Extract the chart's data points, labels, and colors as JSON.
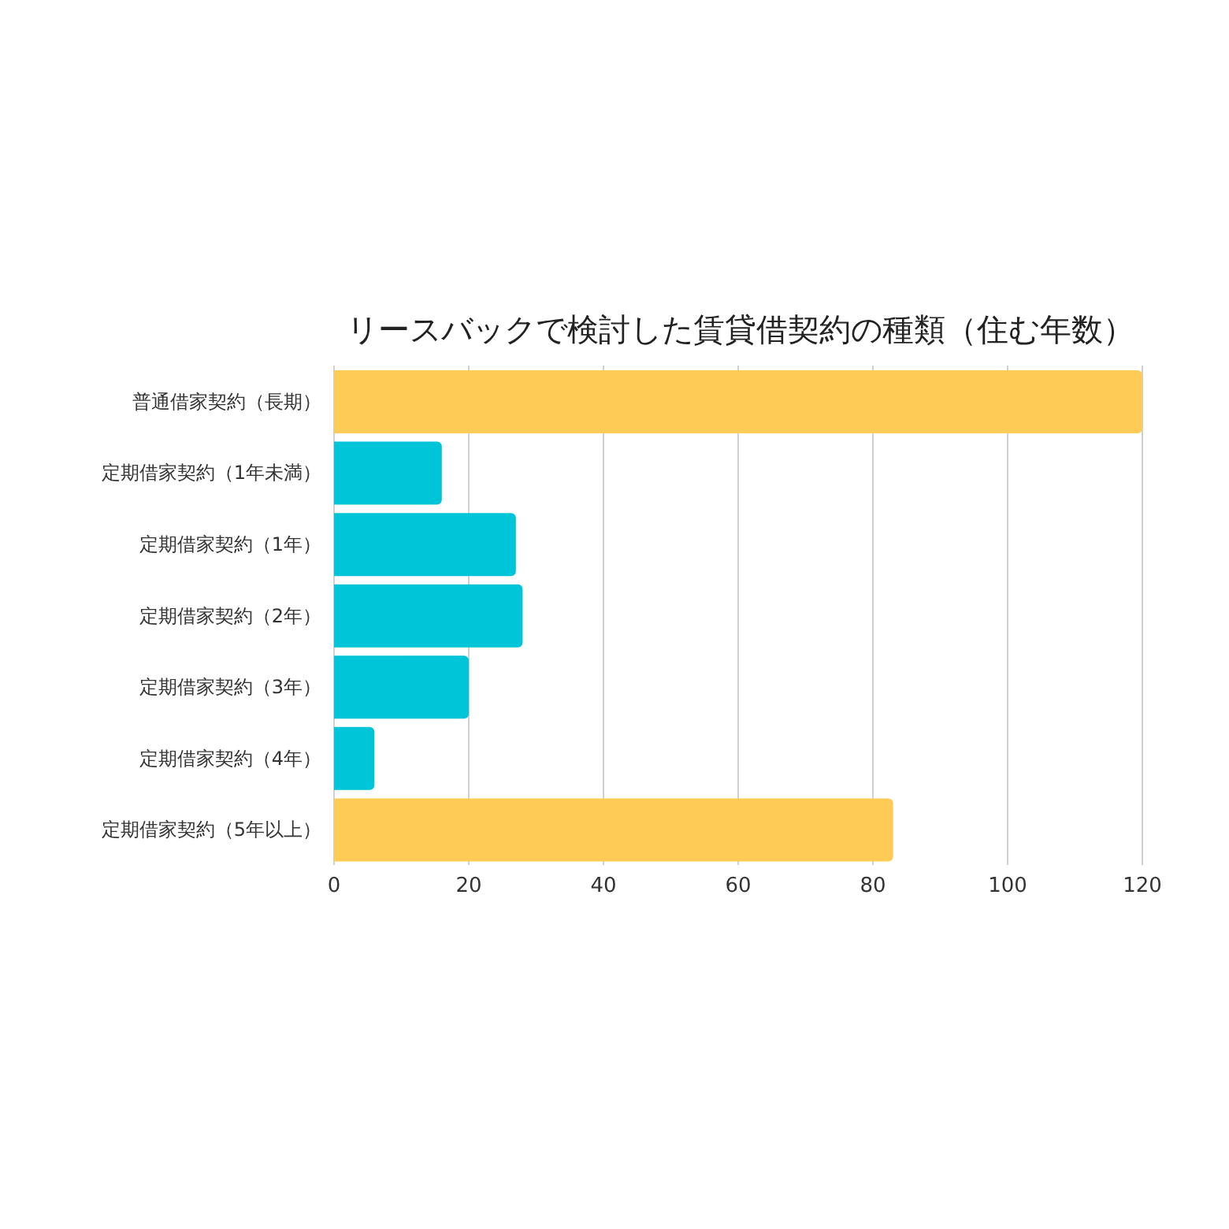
{
  "chart_data": {
    "type": "bar",
    "orientation": "horizontal",
    "title": "リースバックで検討した賃貸借契約の種類（住む年数）",
    "categories": [
      "普通借家契約（長期）",
      "定期借家契約（1年未満）",
      "定期借家契約（1年）",
      "定期借家契約（2年）",
      "定期借家契約（3年）",
      "定期借家契約（4年）",
      "定期借家契約（5年以上）"
    ],
    "values": [
      120,
      16,
      27,
      28,
      20,
      6,
      83
    ],
    "colors": [
      "#fecb57",
      "#00c5d9",
      "#00c5d9",
      "#00c5d9",
      "#00c5d9",
      "#00c5d9",
      "#fecb57"
    ],
    "xlim": [
      0,
      120
    ],
    "xticks": [
      0,
      20,
      40,
      60,
      80,
      100,
      120
    ],
    "grid": "x"
  }
}
